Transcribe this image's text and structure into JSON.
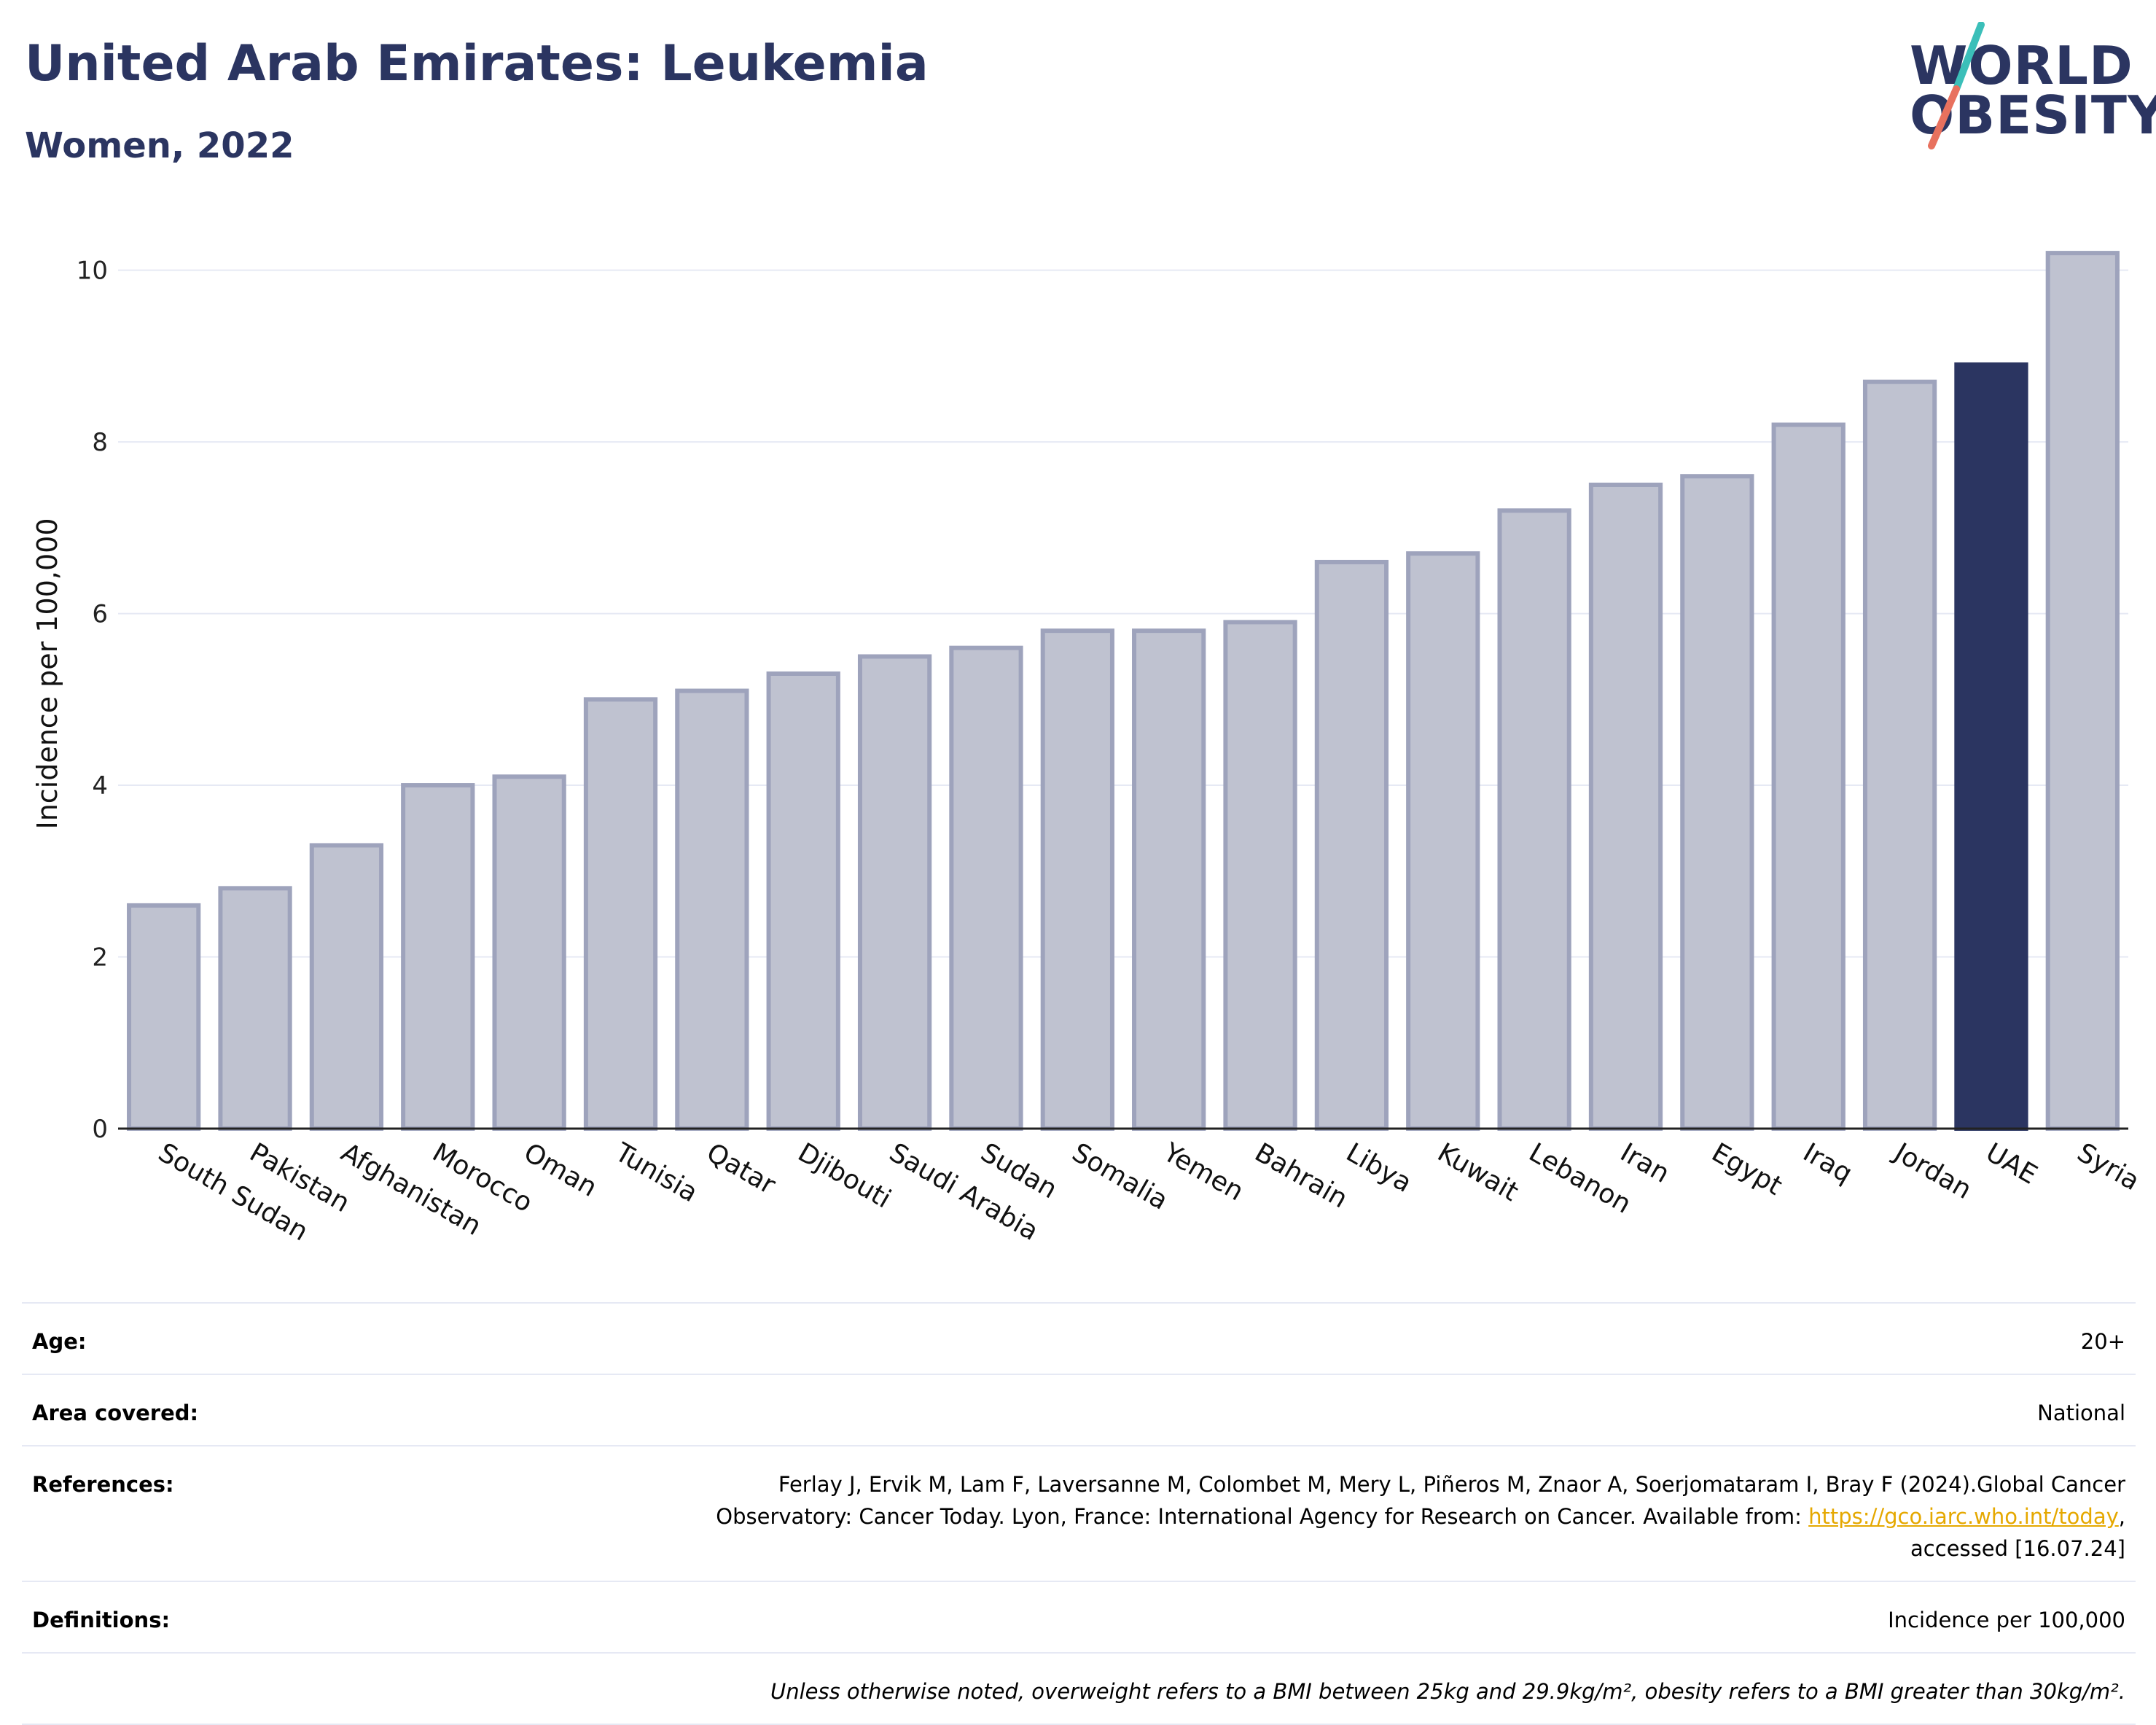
{
  "header": {
    "title": "United Arab Emirates: Leukemia",
    "subtitle": "Women, 2022"
  },
  "logo": {
    "line1": "WORLD",
    "line2": "OBESITY",
    "colors": {
      "text": "#2b3561",
      "slash_top": "#3bbfb9",
      "slash_bottom": "#e8715e"
    }
  },
  "chart_data": {
    "type": "bar",
    "ylabel": "Incidence per 100,000",
    "ylim": [
      0,
      10.6
    ],
    "yticks": [
      0,
      2,
      4,
      6,
      8,
      10
    ],
    "grid": true,
    "highlight": "UAE",
    "colors": {
      "bar": "#bfc2d0",
      "bar_edge": "#9ea3bc",
      "highlight": "#2b3561",
      "grid": "#e6e9f4"
    },
    "categories": [
      "South Sudan",
      "Pakistan",
      "Afghanistan",
      "Morocco",
      "Oman",
      "Tunisia",
      "Qatar",
      "Djibouti",
      "Saudi Arabia",
      "Sudan",
      "Somalia",
      "Yemen",
      "Bahrain",
      "Libya",
      "Kuwait",
      "Lebanon",
      "Iran",
      "Egypt",
      "Iraq",
      "Jordan",
      "UAE",
      "Syria"
    ],
    "values": [
      2.6,
      2.8,
      3.3,
      4.0,
      4.1,
      5.0,
      5.1,
      5.3,
      5.5,
      5.6,
      5.8,
      5.8,
      5.9,
      6.6,
      6.7,
      7.2,
      7.5,
      7.6,
      8.2,
      8.7,
      8.9,
      10.2
    ]
  },
  "info": {
    "age": {
      "label": "Age:",
      "value": "20+"
    },
    "area": {
      "label": "Area covered:",
      "value": "National"
    },
    "references": {
      "label": "References:",
      "line1": "Ferlay J, Ervik M, Lam F, Laversanne M, Colombet M, Mery L, Piñeros M, Znaor A, Soerjomataram I, Bray F (2024).Global Cancer",
      "line2_prefix": "Observatory: Cancer Today. Lyon, France: International Agency for Research on Cancer. Available from: ",
      "link": "https://gco.iarc.who.int/today",
      "line2_suffix": ",",
      "line3": "accessed [16.07.24]"
    },
    "definitions": {
      "label": "Definitions:",
      "value": "Incidence per 100,000"
    },
    "note": "Unless otherwise noted, overweight refers to a BMI between 25kg and 29.9kg/m², obesity refers to a BMI greater than 30kg/m²."
  }
}
